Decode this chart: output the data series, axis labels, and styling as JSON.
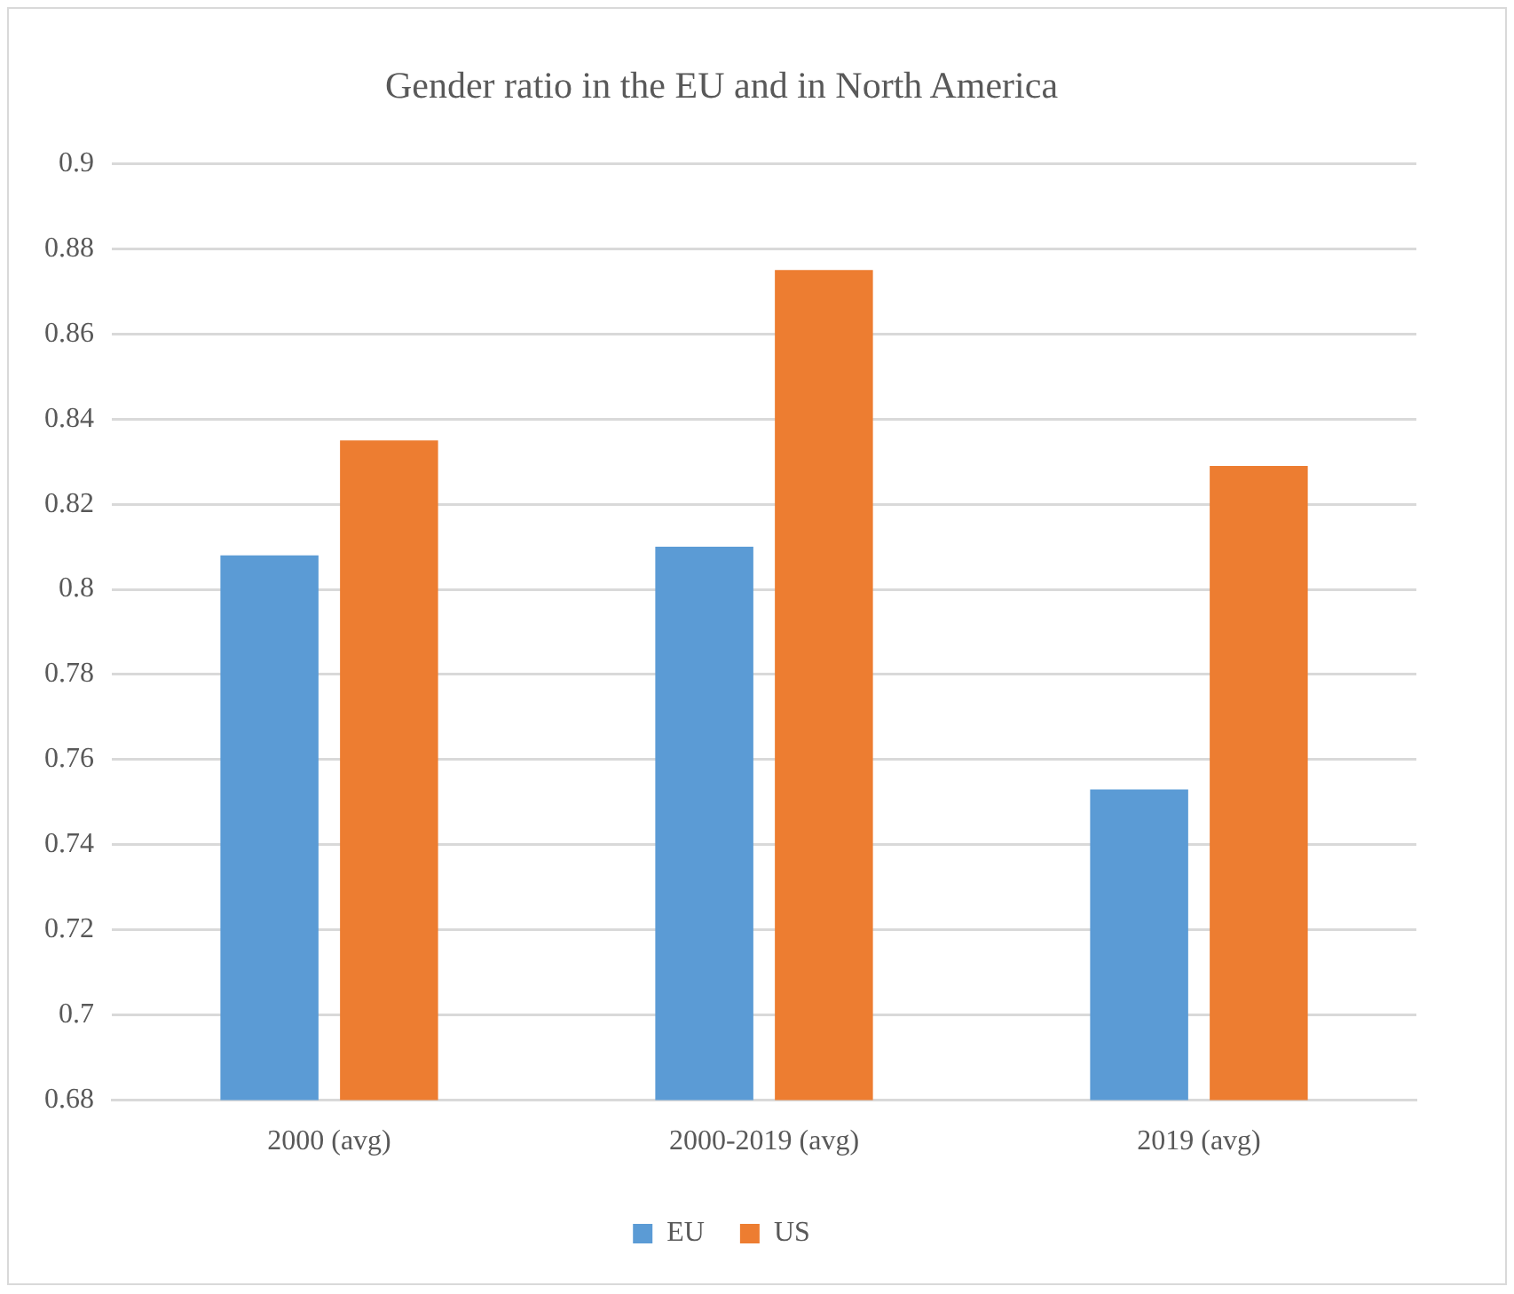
{
  "chart_data": {
    "type": "bar",
    "title": "Gender ratio in the EU and in North America",
    "categories": [
      "2000 (avg)",
      "2000-2019 (avg)",
      "2019 (avg)"
    ],
    "series": [
      {
        "name": "EU",
        "color": "#5b9bd5",
        "values": [
          0.808,
          0.81,
          0.753
        ]
      },
      {
        "name": "US",
        "color": "#ed7d31",
        "values": [
          0.835,
          0.875,
          0.829
        ]
      }
    ],
    "ylim": [
      0.68,
      0.9
    ],
    "yticks": [
      0.68,
      0.7,
      0.72,
      0.74,
      0.76,
      0.78,
      0.8,
      0.82,
      0.84,
      0.86,
      0.88,
      0.9
    ],
    "grid": "y",
    "legend": "bottom"
  }
}
